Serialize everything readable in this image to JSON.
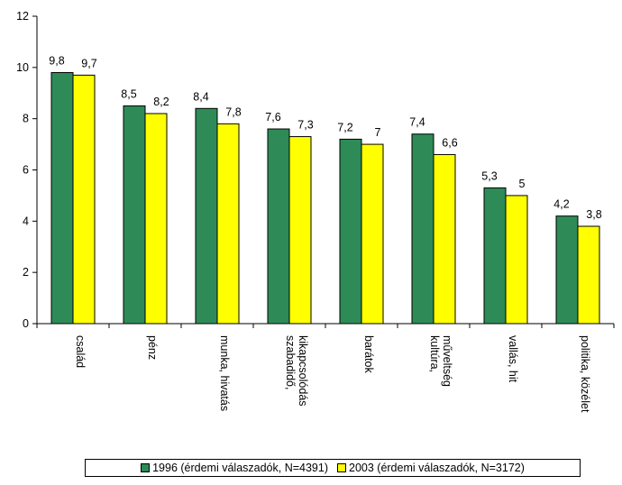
{
  "chart_data": {
    "type": "bar",
    "categories": [
      [
        "család"
      ],
      [
        "pénz"
      ],
      [
        "munka, hivatás"
      ],
      [
        "szabadidő,",
        "kikapcsolódás"
      ],
      [
        "barátok"
      ],
      [
        "kultúra,",
        "műveltség"
      ],
      [
        "vallás, hit"
      ],
      [
        "politika, közélet"
      ]
    ],
    "series": [
      {
        "name": "1996 (érdemi válaszadók, N=4391)",
        "values": [
          9.8,
          8.5,
          8.4,
          7.6,
          7.2,
          7.4,
          5.3,
          4.2
        ],
        "labels": [
          "9,8",
          "8,5",
          "8,4",
          "7,6",
          "7,2",
          "7,4",
          "5,3",
          "4,2"
        ],
        "color": "#2e8b57"
      },
      {
        "name": "2003 (érdemi válaszadók, N=3172)",
        "values": [
          9.7,
          8.2,
          7.8,
          7.3,
          7.0,
          6.6,
          5.0,
          3.8
        ],
        "labels": [
          "9,7",
          "8,2",
          "7,8",
          "7,3",
          "7",
          "6,6",
          "5",
          "3,8"
        ],
        "color": "#ffff00"
      }
    ],
    "y_ticks": [
      "0",
      "2",
      "4",
      "6",
      "8",
      "10",
      "12"
    ],
    "ylim": [
      0,
      12
    ],
    "grid": false,
    "legend_position": "bottom",
    "title": "",
    "xlabel": "",
    "ylabel": ""
  }
}
